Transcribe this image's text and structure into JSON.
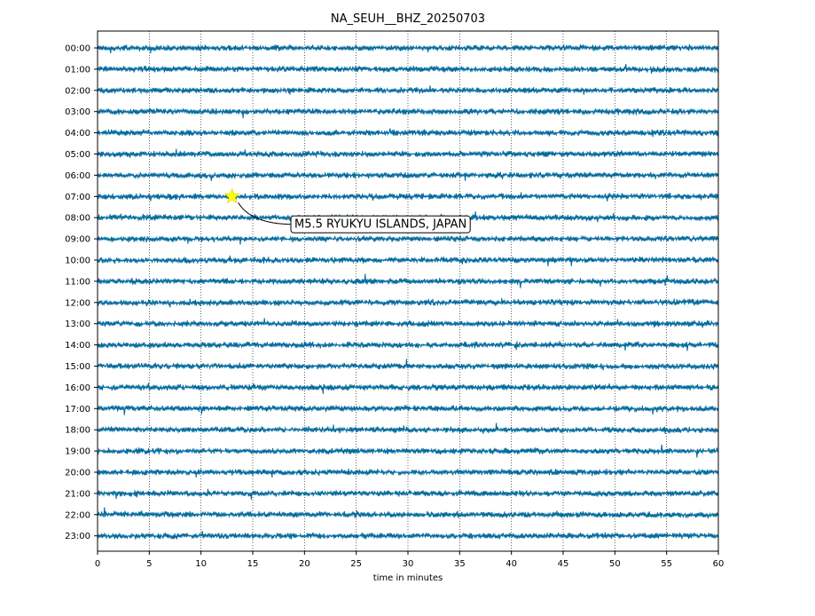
{
  "chart_data": {
    "type": "line",
    "title": "NA_SEUH__BHZ_20250703",
    "xlabel": "time in minutes",
    "ylabel": "",
    "xlim": [
      0,
      60
    ],
    "xticks": [
      0,
      5,
      10,
      15,
      20,
      25,
      30,
      35,
      40,
      45,
      50,
      55,
      60
    ],
    "xtick_labels": [
      "0",
      "5",
      "10",
      "15",
      "20",
      "25",
      "30",
      "35",
      "40",
      "45",
      "50",
      "55",
      "60"
    ],
    "grid": "vertical dotted at each x tick",
    "trace_color": "#00699c",
    "hour_labels": [
      "00:00",
      "01:00",
      "02:00",
      "03:00",
      "04:00",
      "05:00",
      "06:00",
      "07:00",
      "08:00",
      "09:00",
      "10:00",
      "11:00",
      "12:00",
      "13:00",
      "14:00",
      "15:00",
      "16:00",
      "17:00",
      "18:00",
      "19:00",
      "20:00",
      "21:00",
      "22:00",
      "23:00"
    ],
    "event": {
      "label": "M5.5 RYUKYU ISLANDS, JAPAN",
      "hour_row": "07:00",
      "minute": 13,
      "marker": "star",
      "marker_color": "#ffff00"
    }
  }
}
